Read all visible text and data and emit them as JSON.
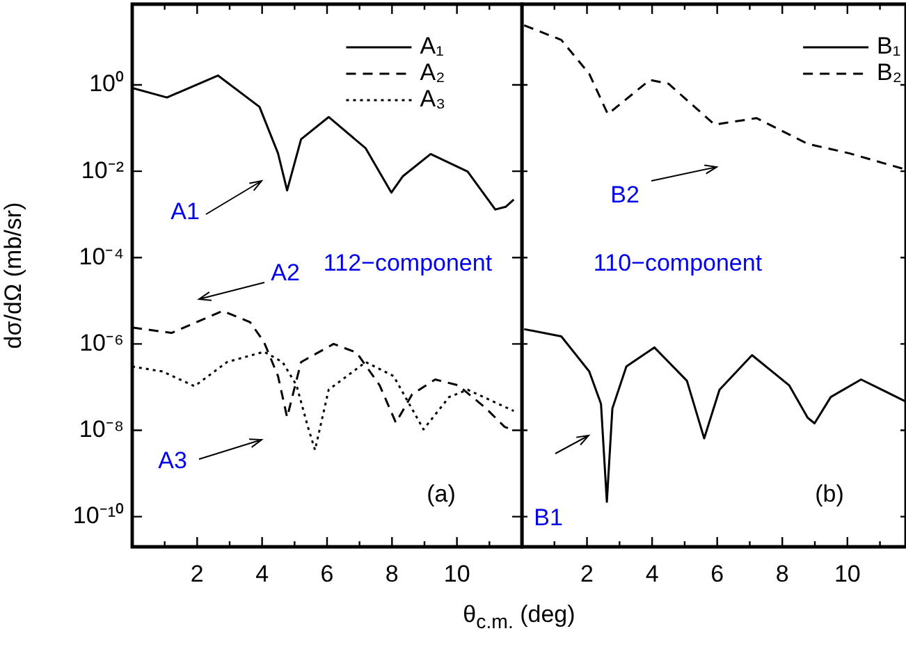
{
  "chart_data": [
    {
      "type": "line",
      "ylabel": "dσ/dΩ (mb/sr)",
      "xlabel": "θ$_{c.m.}$ (deg)",
      "log": true,
      "legend": "top right",
      "grid": false,
      "marker": "none",
      "xlim": [
        0,
        12
      ],
      "xticks": [
        {
          "value": 1,
          "label": null
        },
        2,
        {
          "value": 3,
          "label": null
        },
        4,
        {
          "value": 5,
          "label": null
        },
        6,
        {
          "value": 7,
          "label": null
        },
        8,
        {
          "value": 9,
          "label": null
        },
        10,
        {
          "value": 11,
          "label": null
        }
      ],
      "ylim": [
        2e-11,
        74
      ],
      "yticks": [
        {
          "value": 1,
          "label": "10⁰"
        },
        {
          "value": 0.01,
          "label": "10⁻²"
        },
        {
          "value": 0.0001,
          "label": "10⁻⁴"
        },
        {
          "value": 1e-06,
          "label": "10⁻⁶"
        },
        {
          "value": 1e-08,
          "label": "10⁻⁸"
        },
        {
          "value": 1e-10,
          "label": "10⁻¹⁰"
        }
      ],
      "annotations": [
        "A1",
        "A2",
        "A3",
        "112−component",
        "(a)"
      ],
      "series": [
        {
          "name": "A₁",
          "color": "#000000",
          "line_style": "solid",
          "x": [
            0,
            1.07,
            2.64,
            3.92,
            4.49,
            4.77,
            5.2,
            6.05,
            7.19,
            7.98,
            8.33,
            9.19,
            10.33,
            11.18,
            11.5,
            11.75
          ],
          "values": [
            0.85,
            0.51,
            1.65,
            0.31,
            0.026,
            0.0036,
            0.055,
            0.18,
            0.034,
            0.0032,
            0.0076,
            0.025,
            0.0098,
            0.0013,
            0.0015,
            0.0022
          ]
        },
        {
          "name": "A₂",
          "color": "#000000",
          "line_style": "dashed",
          "x": [
            0,
            1.21,
            2.78,
            3.63,
            4.06,
            4.49,
            4.77,
            5.2,
            6.2,
            6.91,
            7.62,
            8.12,
            8.62,
            9.33,
            10.04,
            10.9,
            11.47,
            11.75
          ],
          "values": [
            2.4e-06,
            1.8e-06,
            5.8e-06,
            3.2e-06,
            1.1e-06,
            1.8e-07,
            2e-08,
            3.8e-07,
            1e-06,
            6.3e-07,
            1.1e-07,
            1.5e-08,
            6.8e-08,
            1.5e-07,
            1.1e-07,
            3.2e-08,
            1.2e-08,
            1e-08
          ]
        },
        {
          "name": "A₃",
          "color": "#000000",
          "line_style": "dotted",
          "x": [
            0,
            0.93,
            1.92,
            2.92,
            4.06,
            4.63,
            5.06,
            5.41,
            5.63,
            6.05,
            7.19,
            8.05,
            8.97,
            9.76,
            10.33,
            11.75
          ],
          "values": [
            3e-07,
            2.3e-07,
            1.05e-07,
            3.8e-07,
            6.6e-07,
            3.8e-07,
            1.1e-07,
            1.2e-08,
            3.5e-09,
            8.7e-08,
            3.8e-07,
            1.8e-07,
            1.05e-08,
            5.9e-08,
            8.7e-08,
            2.8e-08
          ]
        }
      ]
    },
    {
      "type": "line",
      "log": true,
      "legend": "top right",
      "grid": false,
      "marker": "none",
      "tick_labels": "x",
      "xlim": [
        0,
        11.8
      ],
      "xticks": [
        {
          "value": 1,
          "label": null
        },
        2,
        {
          "value": 3,
          "label": null
        },
        4,
        {
          "value": 5,
          "label": null
        },
        6,
        {
          "value": 7,
          "label": null
        },
        8,
        {
          "value": 9,
          "label": null
        },
        10,
        {
          "value": 11,
          "label": null
        }
      ],
      "ylim": [
        2e-11,
        74
      ],
      "yticks": [
        {
          "value": 1,
          "label": null
        },
        {
          "value": 0.01,
          "label": null
        },
        {
          "value": 0.0001,
          "label": null
        },
        {
          "value": 1e-06,
          "label": null
        },
        {
          "value": 1e-08,
          "label": null
        },
        {
          "value": 1e-10,
          "label": null
        }
      ],
      "annotations": [
        "B2",
        "110−component",
        "B1",
        "(b)"
      ],
      "series": [
        {
          "name": "B₁",
          "color": "#000000",
          "line_style": "solid",
          "x": [
            0.07,
            1.21,
            2.07,
            2.43,
            2.61,
            2.78,
            3.21,
            4.07,
            5.07,
            5.6,
            6.07,
            7.07,
            8.21,
            8.78,
            8.99,
            9.49,
            10.42,
            11.78
          ],
          "values": [
            2.2e-06,
            1.5e-06,
            2.3e-07,
            4.1e-08,
            2.2e-10,
            3.2e-08,
            3e-07,
            8.3e-07,
            1.4e-07,
            6.5e-09,
            8.7e-08,
            5.5e-07,
            1.1e-07,
            1.95e-08,
            1.45e-08,
            5.9e-08,
            1.5e-07,
            4.7e-08
          ]
        },
        {
          "name": "B₂",
          "color": "#000000",
          "line_style": "dashed",
          "x": [
            0.07,
            1.21,
            2.07,
            2.64,
            3.93,
            4.5,
            5.92,
            7.21,
            8.78,
            10.06,
            11.78
          ],
          "values": [
            24,
            11,
            1.8,
            0.21,
            1.3,
            1.07,
            0.12,
            0.17,
            0.043,
            0.026,
            0.011
          ]
        }
      ]
    }
  ]
}
